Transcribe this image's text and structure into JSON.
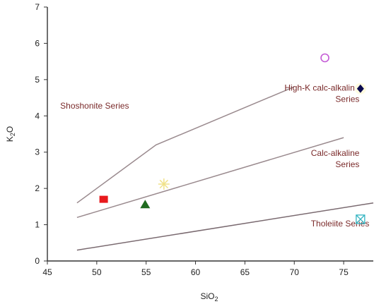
{
  "chart_data": {
    "type": "scatter",
    "title": "",
    "xlabel": "SiO",
    "xlabel_sub": "2",
    "ylabel": "K",
    "ylabel_sub": "2",
    "ylabel_tail": "O",
    "xlim": [
      45,
      78
    ],
    "ylim": [
      0,
      7
    ],
    "xticks": [
      45,
      50,
      55,
      60,
      65,
      70,
      75
    ],
    "yticks": [
      0,
      1,
      2,
      3,
      4,
      5,
      6,
      7
    ],
    "grid": false,
    "boundaries": [
      {
        "name": "shoshonite-boundary",
        "color": "#9a8a8e",
        "points": [
          [
            48,
            1.6
          ],
          [
            56,
            3.2
          ],
          [
            70,
            4.8
          ]
        ]
      },
      {
        "name": "high-k-boundary",
        "color": "#9a8a8e",
        "points": [
          [
            48,
            1.2
          ],
          [
            75,
            3.4
          ]
        ]
      },
      {
        "name": "calc-alkaline-boundary",
        "color": "#7a6a70",
        "points": [
          [
            48,
            0.3
          ],
          [
            78,
            1.6
          ]
        ]
      }
    ],
    "regions": [
      {
        "name": "shoshonite",
        "lines": [
          "Shoshonite Series"
        ],
        "anchor": "start",
        "x": 46.3,
        "y": 4.2
      },
      {
        "name": "high-k-calc-alkaline",
        "lines": [
          "High-K calc-alkaline",
          "Series"
        ],
        "anchor": "end",
        "x": 76.6,
        "y": 4.7
      },
      {
        "name": "calc-alkaline",
        "lines": [
          "Calc-alkaline",
          "Series"
        ],
        "anchor": "end",
        "x": 76.6,
        "y": 2.9
      },
      {
        "name": "tholeiite",
        "lines": [
          "Tholeiite Series"
        ],
        "anchor": "end",
        "x": 77.6,
        "y": 0.95
      }
    ],
    "series": [
      {
        "marker": "square",
        "color": "#e8191c",
        "x": 50.7,
        "y": 1.7
      },
      {
        "marker": "triangle",
        "color": "#1f6b1f",
        "x": 54.9,
        "y": 1.55
      },
      {
        "marker": "asterisk",
        "color": "#f0e28a",
        "x": 56.8,
        "y": 2.12
      },
      {
        "marker": "circle-open",
        "color": "#c45bd6",
        "x": 73.1,
        "y": 5.6
      },
      {
        "marker": "diamond",
        "color": "#0a0a50",
        "x": 76.7,
        "y": 4.75
      },
      {
        "marker": "square-x",
        "color": "#35b5c2",
        "x": 76.7,
        "y": 1.15
      }
    ]
  }
}
